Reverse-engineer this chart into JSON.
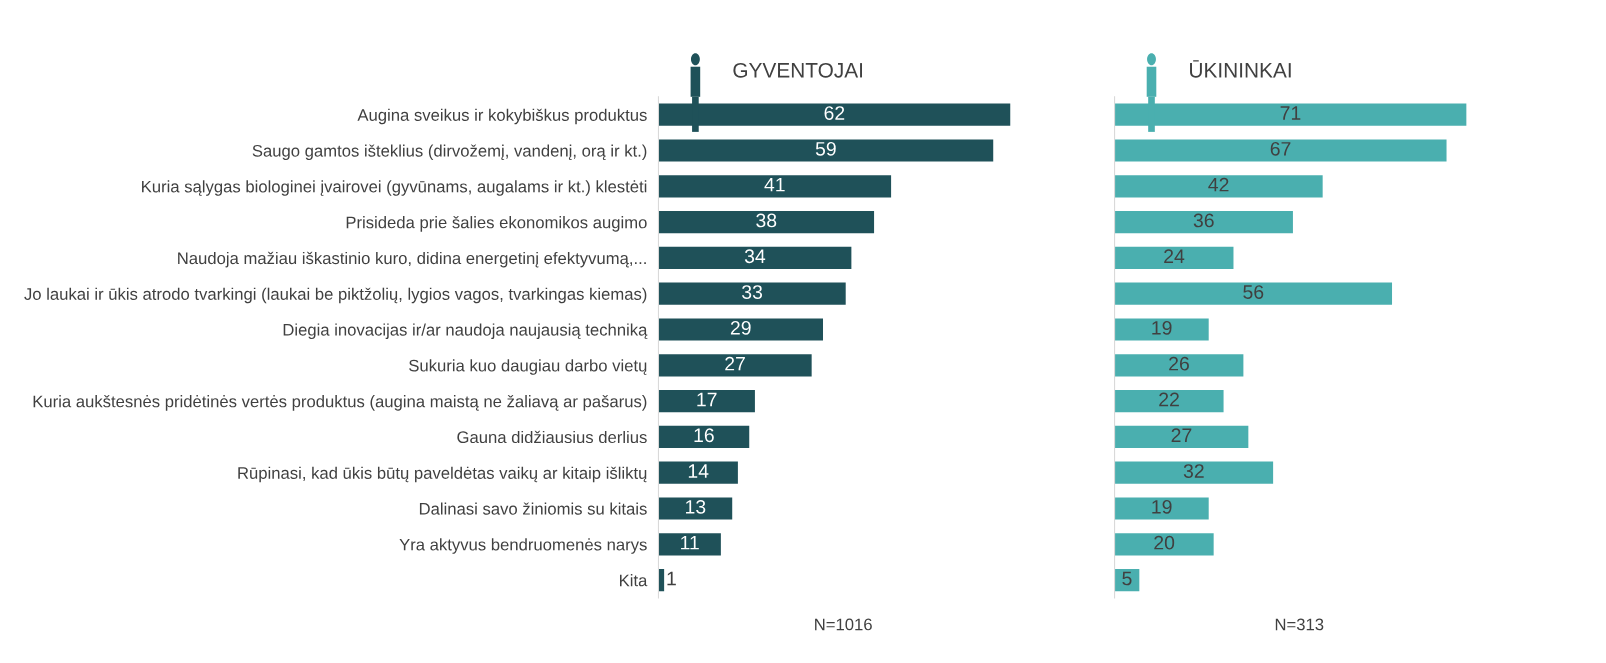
{
  "chart_data": [
    {
      "type": "bar",
      "orientation": "horizontal",
      "title": "GYVENTOJAI",
      "annotations": [
        "N=1016"
      ],
      "categories": [
        "Augina sveikus ir kokybiškus produktus",
        "Saugo gamtos išteklius (dirvožemį, vandenį, orą ir kt.)",
        "Kuria sąlygas biologinei įvairovei (gyvūnams, augalams ir kt.) klestėti",
        "Prisideda prie šalies ekonomikos augimo",
        "Naudoja mažiau iškastinio kuro, didina energetinį efektyvumą,...",
        "Jo laukai ir ūkis atrodo tvarkingi (laukai be piktžolių, lygios vagos, tvarkingas kiemas)",
        "Diegia inovacijas ir/ar naudoja naujausią techniką",
        "Sukuria kuo daugiau darbo vietų",
        "Kuria aukštesnės pridėtinės vertės produktus (augina maistą ne žaliavą ar pašarus)",
        "Gauna didžiausius derlius",
        "Rūpinasi, kad ūkis būtų paveldėtas vaikų ar kitaip išliktų",
        "Dalinasi savo žiniomis su kitais",
        "Yra aktyvus bendruomenės narys",
        "Kita"
      ],
      "values": [
        62,
        59,
        41,
        38,
        34,
        33,
        29,
        27,
        17,
        16,
        14,
        13,
        11,
        1
      ],
      "color": "#1f5159",
      "data_labels": true,
      "tick_labels": "y",
      "grid": false,
      "legend": false
    },
    {
      "type": "bar",
      "orientation": "horizontal",
      "title": "ŪKININKAI",
      "annotations": [
        "N=313"
      ],
      "categories": [
        null,
        null,
        null,
        null,
        null,
        null,
        null,
        null,
        null,
        null,
        null,
        null,
        null,
        null
      ],
      "values": [
        71,
        67,
        42,
        36,
        24,
        56,
        19,
        26,
        22,
        27,
        32,
        19,
        20,
        5
      ],
      "color": "#4aafaf",
      "data_labels": true,
      "tick_labels": false,
      "grid": false,
      "legend": false
    }
  ]
}
